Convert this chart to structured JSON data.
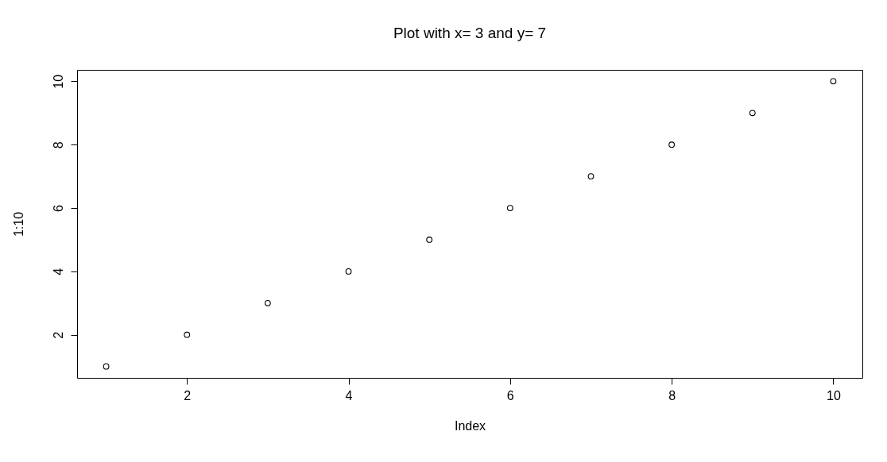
{
  "chart_data": {
    "type": "scatter",
    "title": "Plot with x= 3  and y= 7",
    "xlabel": "Index",
    "ylabel": "1:10",
    "x": [
      1,
      2,
      3,
      4,
      5,
      6,
      7,
      8,
      9,
      10
    ],
    "series": [
      {
        "color": "#000000",
        "values": [
          1,
          2,
          3,
          4,
          5,
          6,
          7,
          8,
          9,
          10
        ]
      }
    ],
    "xlim": [
      0.64,
      10.36
    ],
    "ylim": [
      0.64,
      10.36
    ],
    "xticks": [
      2,
      4,
      6,
      8,
      10
    ],
    "yticks": [
      2,
      4,
      6,
      8,
      10
    ],
    "grid": false,
    "legend": false,
    "marker": "circle"
  }
}
